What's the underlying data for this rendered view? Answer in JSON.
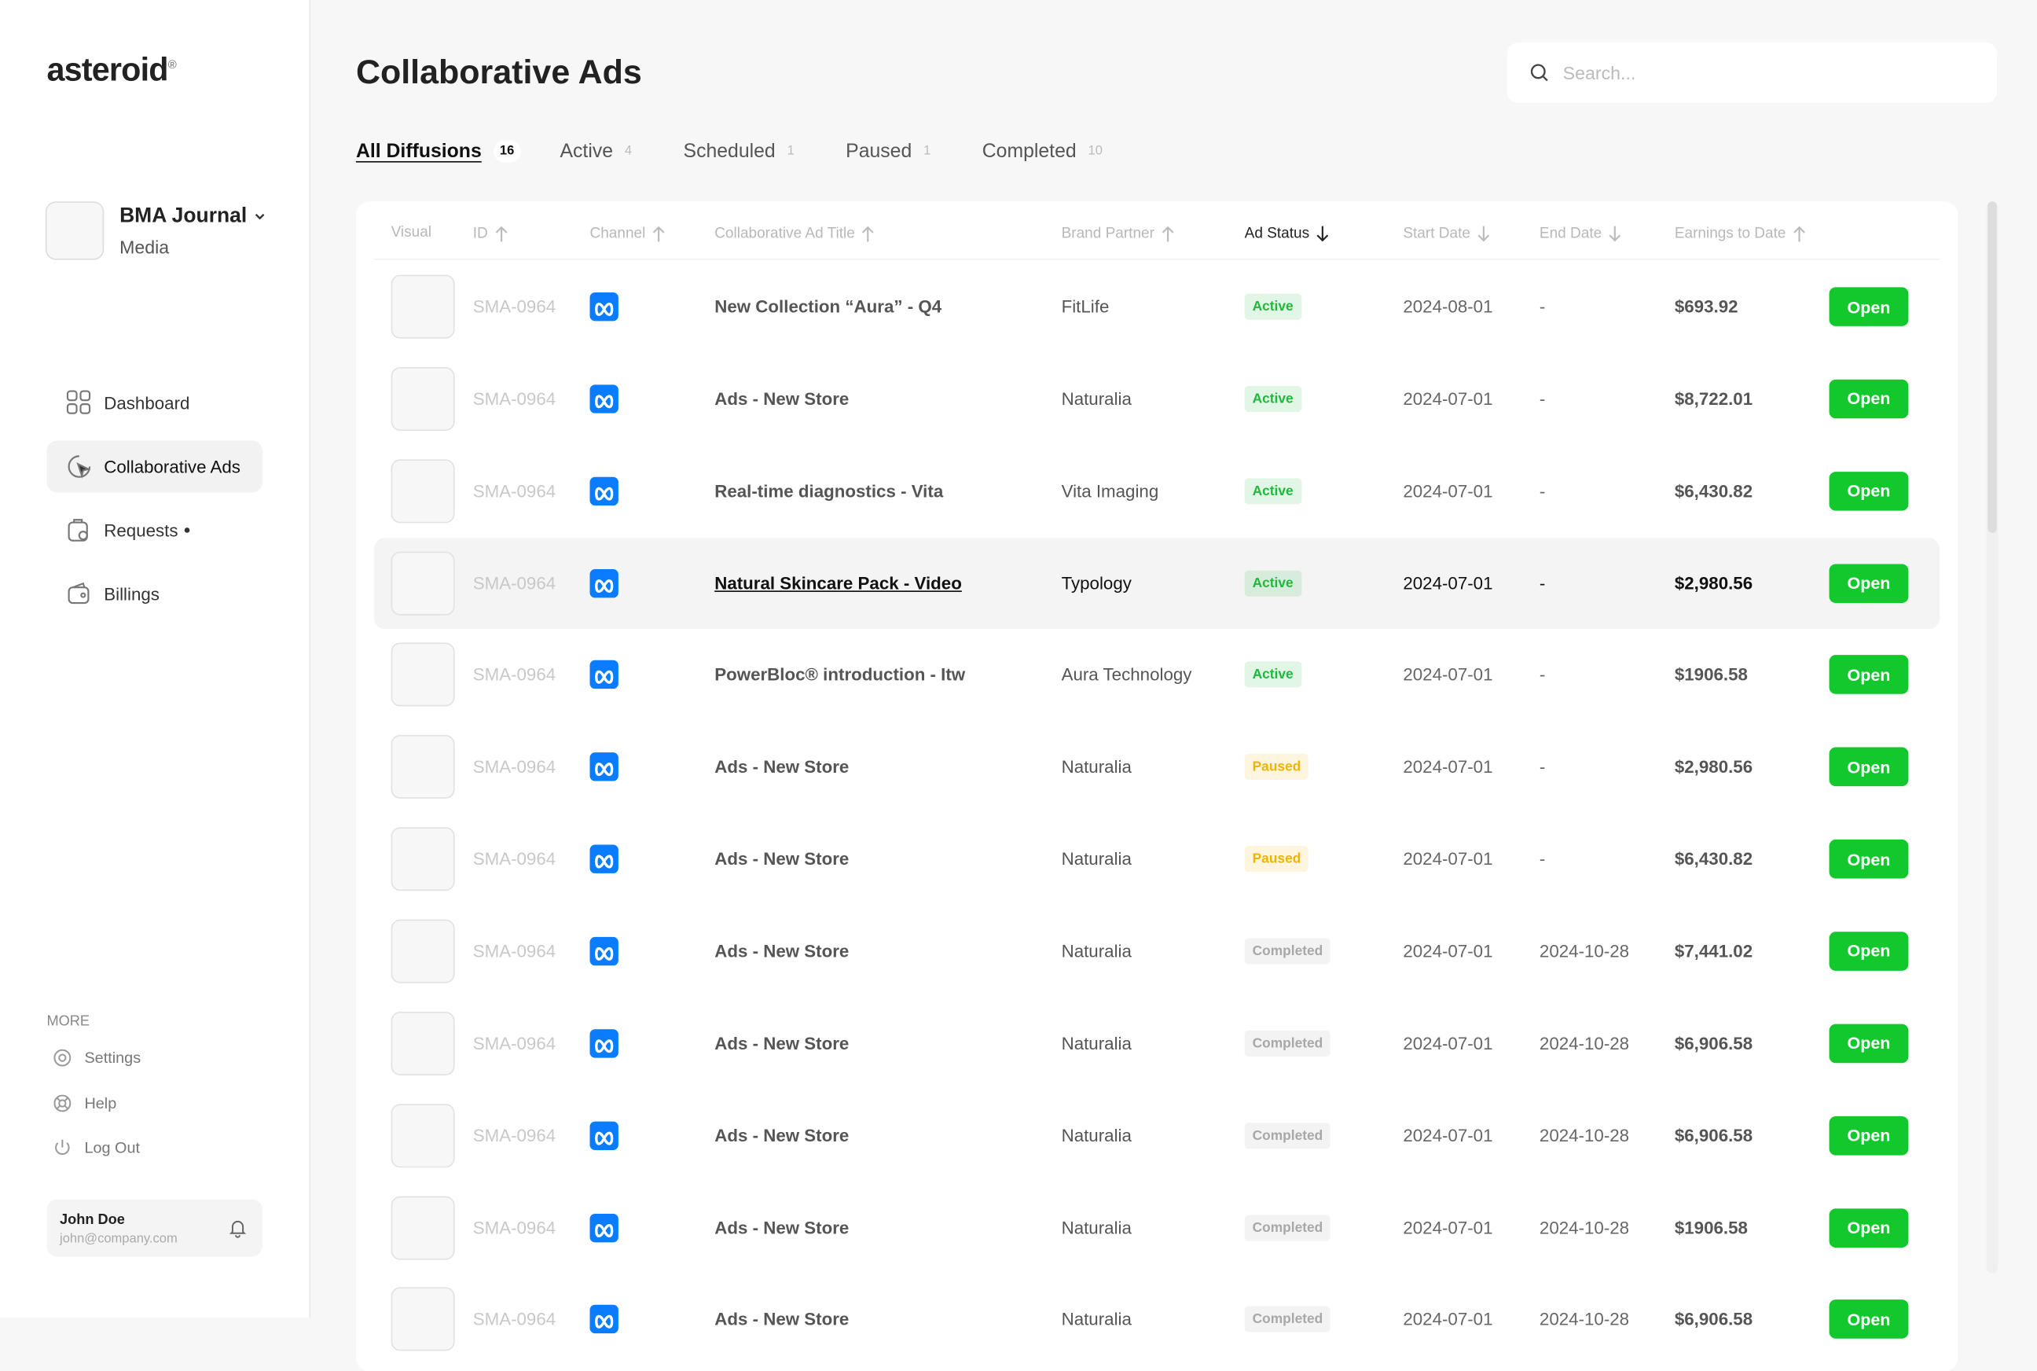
{
  "sidebar": {
    "logo": "asteroid",
    "logo_mark": "®",
    "workspace": {
      "name": "BMA Journal",
      "type": "Media"
    },
    "nav": [
      "Dashboard",
      "Collaborative Ads",
      "Requests",
      "Billings"
    ],
    "more_label": "MORE",
    "more": [
      "Settings",
      "Help",
      "Log Out"
    ],
    "user": {
      "name": "John Doe",
      "email": "john@company.com"
    }
  },
  "header": {
    "title": "Collaborative Ads",
    "search_placeholder": "Search..."
  },
  "tabs": [
    {
      "label": "All Diffusions",
      "count": 16
    },
    {
      "label": "Active",
      "count": 4
    },
    {
      "label": "Scheduled",
      "count": 1
    },
    {
      "label": "Paused",
      "count": 1
    },
    {
      "label": "Completed",
      "count": 10
    }
  ],
  "table": {
    "columns": [
      "Visual",
      "ID",
      "Channel",
      "Collaborative Ad Title",
      "Brand Partner",
      "Ad Status",
      "Start Date",
      "End Date",
      "Earnings to Date"
    ],
    "button": "Open",
    "rows": [
      {
        "id": "SMA-0964",
        "title": "New Collection “Aura” - Q4",
        "partner": "FitLife",
        "status": "Active",
        "status_color": "#1db93c",
        "start": "2024-08-01",
        "end": "-",
        "earnings": "$693.92"
      },
      {
        "id": "SMA-0964",
        "title": "Ads - New Store",
        "partner": "Naturalia",
        "status": "Active",
        "status_color": "#1db93c",
        "start": "2024-07-01",
        "end": "-",
        "earnings": "$8,722.01"
      },
      {
        "id": "SMA-0964",
        "title": "Real-time diagnostics - Vita",
        "partner": "Vita Imaging",
        "status": "Active",
        "status_color": "#1db93c",
        "start": "2024-07-01",
        "end": "-",
        "earnings": "$6,430.82"
      },
      {
        "id": "SMA-0964",
        "title": "Natural Skincare Pack - Video",
        "partner": "Typology",
        "status": "Active",
        "status_color": "#1db93c",
        "start": "2024-07-01",
        "end": "-",
        "earnings": "$2,980.56"
      },
      {
        "id": "SMA-0964",
        "title": "PowerBloc® introduction - Itw",
        "partner": "Aura Technology",
        "status": "Active",
        "status_color": "#1db93c",
        "start": "2024-07-01",
        "end": "-",
        "earnings": "$1906.58"
      },
      {
        "id": "SMA-0964",
        "title": "Ads - New Store",
        "partner": "Naturalia",
        "status": "Paused",
        "status_color": "#f0b400",
        "start": "2024-07-01",
        "end": "-",
        "earnings": "$2,980.56"
      },
      {
        "id": "SMA-0964",
        "title": "Ads - New Store",
        "partner": "Naturalia",
        "status": "Paused",
        "status_color": "#f0b400",
        "start": "2024-07-01",
        "end": "-",
        "earnings": "$6,430.82"
      },
      {
        "id": "SMA-0964",
        "title": "Ads - New Store",
        "partner": "Naturalia",
        "status": "Completed",
        "status_color": "#a8a8a8",
        "start": "2024-07-01",
        "end": "2024-10-28",
        "earnings": "$7,441.02"
      },
      {
        "id": "SMA-0964",
        "title": "Ads - New Store",
        "partner": "Naturalia",
        "status": "Completed",
        "status_color": "#a8a8a8",
        "start": "2024-07-01",
        "end": "2024-10-28",
        "earnings": "$6,906.58"
      },
      {
        "id": "SMA-0964",
        "title": "Ads - New Store",
        "partner": "Naturalia",
        "status": "Completed",
        "status_color": "#a8a8a8",
        "start": "2024-07-01",
        "end": "2024-10-28",
        "earnings": "$6,906.58"
      },
      {
        "id": "SMA-0964",
        "title": "Ads - New Store",
        "partner": "Naturalia",
        "status": "Completed",
        "status_color": "#a8a8a8",
        "start": "2024-07-01",
        "end": "2024-10-28",
        "earnings": "$1906.58"
      },
      {
        "id": "SMA-0964",
        "title": "Ads - New Store",
        "partner": "Naturalia",
        "status": "Completed",
        "status_color": "#a8a8a8",
        "start": "2024-07-01",
        "end": "2024-10-28",
        "earnings": "$6,906.58"
      }
    ]
  }
}
